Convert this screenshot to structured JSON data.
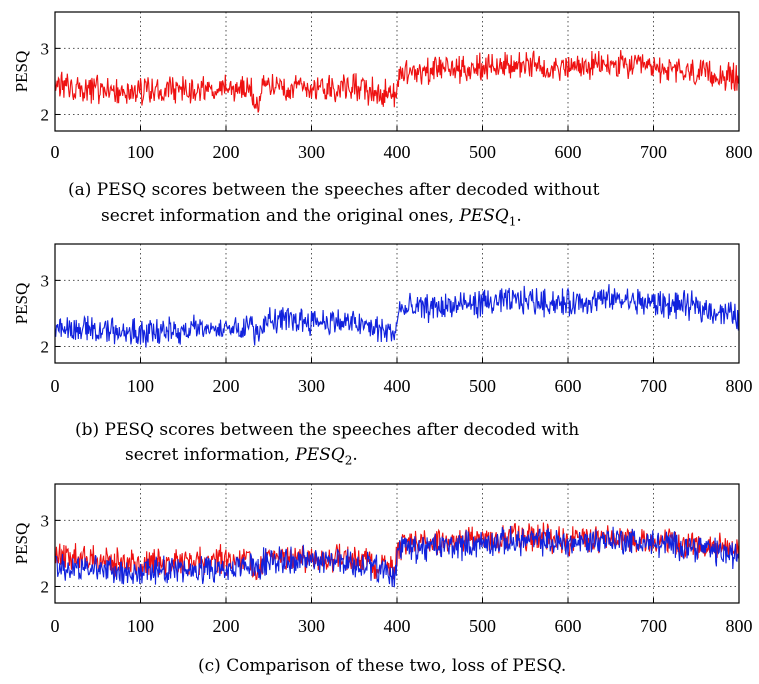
{
  "figure": {
    "caption_a_line1": "(a) PESQ scores between the speeches after decoded without",
    "caption_a_line2": "secret information and the original ones, ",
    "caption_a_math": "PESQ",
    "caption_a_sub": "1",
    "caption_b_line1": "(b) PESQ scores between the speeches after decoded with",
    "caption_b_line2": "secret information, ",
    "caption_b_math": "PESQ",
    "caption_b_sub": "2",
    "caption_c": "(c) Comparison of these two, loss of PESQ."
  },
  "colors": {
    "red": "#ee1111",
    "blue": "#1122dd",
    "grid": "#555555",
    "axis": "#000000"
  },
  "chart_data": [
    {
      "type": "line",
      "ylabel": "PESQ",
      "xlim": [
        0,
        800
      ],
      "ylim": [
        1.75,
        3.55
      ],
      "xticks": [
        "0",
        "100",
        "200",
        "300",
        "400",
        "500",
        "600",
        "700",
        "800"
      ],
      "yticks": [
        "2",
        "3"
      ],
      "grid": true,
      "series": [
        {
          "color": "#ee1111",
          "x": [
            0,
            50,
            100,
            150,
            200,
            230,
            238,
            245,
            300,
            350,
            380,
            398,
            402,
            450,
            500,
            550,
            600,
            650,
            700,
            750,
            800
          ],
          "y": [
            2.45,
            2.4,
            2.35,
            2.37,
            2.4,
            2.35,
            2.15,
            2.45,
            2.42,
            2.42,
            2.32,
            2.3,
            2.62,
            2.68,
            2.72,
            2.75,
            2.7,
            2.75,
            2.7,
            2.62,
            2.55
          ]
        }
      ]
    },
    {
      "type": "line",
      "ylabel": "PESQ",
      "xlim": [
        0,
        800
      ],
      "ylim": [
        1.75,
        3.55
      ],
      "xticks": [
        "0",
        "100",
        "200",
        "300",
        "400",
        "500",
        "600",
        "700",
        "800"
      ],
      "yticks": [
        "2",
        "3"
      ],
      "grid": true,
      "series": [
        {
          "color": "#1122dd",
          "x": [
            0,
            50,
            100,
            150,
            200,
            230,
            238,
            245,
            300,
            350,
            380,
            398,
            402,
            450,
            500,
            550,
            600,
            650,
            700,
            750,
            800
          ],
          "y": [
            2.3,
            2.25,
            2.2,
            2.25,
            2.3,
            2.3,
            2.2,
            2.4,
            2.4,
            2.35,
            2.25,
            2.2,
            2.55,
            2.6,
            2.65,
            2.7,
            2.65,
            2.72,
            2.65,
            2.6,
            2.45
          ]
        }
      ]
    },
    {
      "type": "line",
      "ylabel": "PESQ",
      "xlim": [
        0,
        800
      ],
      "ylim": [
        1.75,
        3.55
      ],
      "xticks": [
        "0",
        "100",
        "200",
        "300",
        "400",
        "500",
        "600",
        "700",
        "800"
      ],
      "yticks": [
        "2",
        "3"
      ],
      "grid": true,
      "series": [
        {
          "color": "#ee1111",
          "x": [
            0,
            50,
            100,
            150,
            200,
            230,
            238,
            245,
            300,
            350,
            380,
            398,
            402,
            450,
            500,
            550,
            600,
            650,
            700,
            750,
            800
          ],
          "y": [
            2.45,
            2.4,
            2.35,
            2.37,
            2.4,
            2.35,
            2.15,
            2.45,
            2.42,
            2.42,
            2.32,
            2.3,
            2.62,
            2.68,
            2.72,
            2.75,
            2.7,
            2.75,
            2.7,
            2.62,
            2.55
          ]
        },
        {
          "color": "#1122dd",
          "x": [
            0,
            50,
            100,
            150,
            200,
            230,
            238,
            245,
            300,
            350,
            380,
            398,
            402,
            450,
            500,
            550,
            600,
            650,
            700,
            750,
            800
          ],
          "y": [
            2.3,
            2.25,
            2.2,
            2.25,
            2.3,
            2.3,
            2.2,
            2.4,
            2.4,
            2.35,
            2.25,
            2.2,
            2.55,
            2.6,
            2.65,
            2.7,
            2.65,
            2.72,
            2.65,
            2.6,
            2.45
          ]
        }
      ]
    }
  ]
}
